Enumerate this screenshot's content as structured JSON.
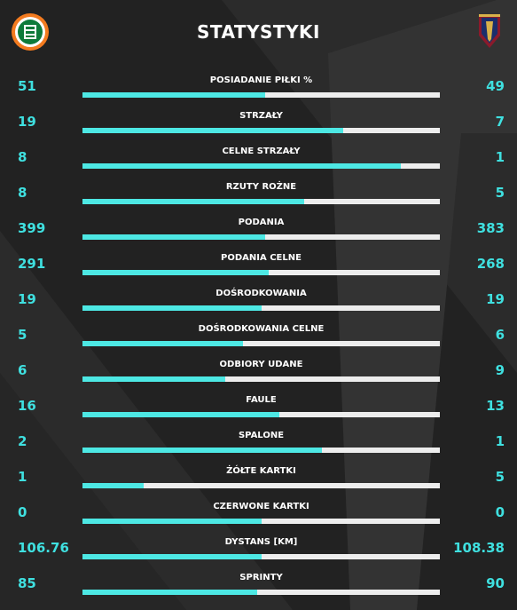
{
  "header": {
    "title": "STATYSTYKI",
    "home_logo_icon": "zaglebie-lubin-crest-icon",
    "away_logo_icon": "pogon-szczecin-crest-icon"
  },
  "colors": {
    "background": "#2b2b2b",
    "accent": "#3fe0e0",
    "bar_fill": "#4de8e4",
    "bar_track": "#ededed"
  },
  "stats": [
    {
      "label": "POSIADANIE PIŁKI %",
      "home": "51",
      "away": "49",
      "home_share": 0.51
    },
    {
      "label": "STRZAŁY",
      "home": "19",
      "away": "7",
      "home_share": 0.73
    },
    {
      "label": "CELNE STRZAŁY",
      "home": "8",
      "away": "1",
      "home_share": 0.89
    },
    {
      "label": "RZUTY ROŻNE",
      "home": "8",
      "away": "5",
      "home_share": 0.62
    },
    {
      "label": "PODANIA",
      "home": "399",
      "away": "383",
      "home_share": 0.51
    },
    {
      "label": "PODANIA CELNE",
      "home": "291",
      "away": "268",
      "home_share": 0.52
    },
    {
      "label": "DOŚRODKOWANIA",
      "home": "19",
      "away": "19",
      "home_share": 0.5
    },
    {
      "label": "DOŚRODKOWANIA CELNE",
      "home": "5",
      "away": "6",
      "home_share": 0.45
    },
    {
      "label": "ODBIORY UDANE",
      "home": "6",
      "away": "9",
      "home_share": 0.4
    },
    {
      "label": "FAULE",
      "home": "16",
      "away": "13",
      "home_share": 0.55
    },
    {
      "label": "SPALONE",
      "home": "2",
      "away": "1",
      "home_share": 0.67
    },
    {
      "label": "ŻÓŁTE KARTKI",
      "home": "1",
      "away": "5",
      "home_share": 0.17
    },
    {
      "label": "CZERWONE KARTKI",
      "home": "0",
      "away": "0",
      "home_share": 0.5
    },
    {
      "label": "DYSTANS [KM]",
      "home": "106.76",
      "away": "108.38",
      "home_share": 0.5
    },
    {
      "label": "SPRINTY",
      "home": "85",
      "away": "90",
      "home_share": 0.49
    }
  ]
}
